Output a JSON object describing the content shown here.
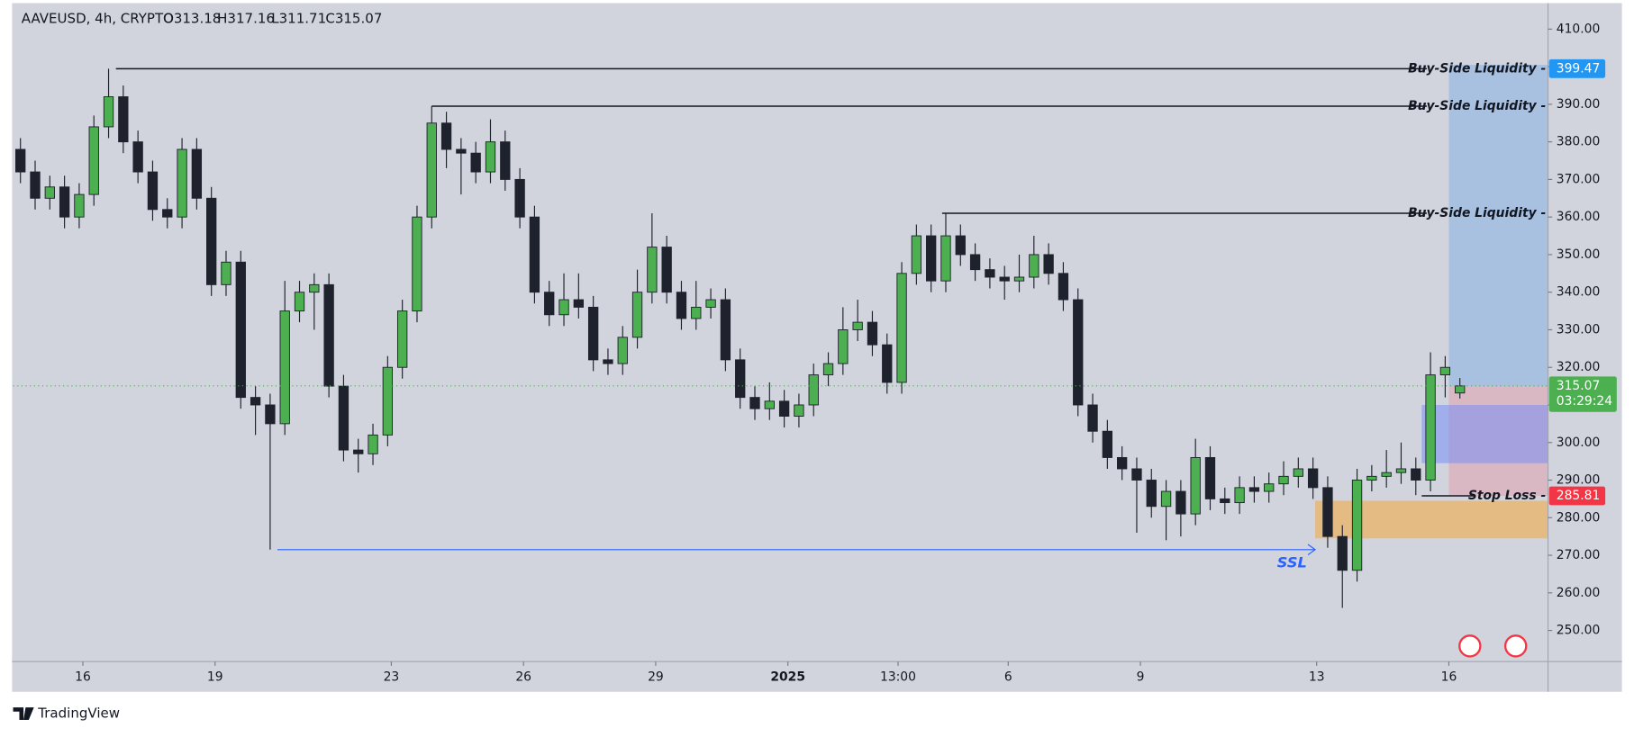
{
  "chart_data": {
    "type": "candlestick",
    "title": "AAVEUSD, 4h, CRYPTO",
    "ohlc_text": [
      "O313.18",
      "H317.16",
      "L311.71",
      "C315.07"
    ],
    "countdown": "03:29:24",
    "brand": "TradingView",
    "up_color": "#4caf50",
    "down_color": "#1e222d",
    "last_price_color": "#4caf50",
    "x": [
      1,
      3,
      5,
      7,
      9,
      11,
      13,
      15,
      17,
      19,
      21,
      23,
      25,
      27,
      29,
      31,
      33,
      35,
      37,
      39,
      41,
      43,
      45,
      47,
      49,
      51,
      53,
      55,
      57,
      59,
      61,
      63,
      65,
      67,
      69,
      71,
      73,
      75,
      77,
      79,
      81,
      83,
      85,
      87,
      89,
      91,
      93,
      95,
      97,
      99,
      101,
      103,
      105,
      107,
      109,
      111,
      113,
      115,
      117,
      119,
      121,
      123,
      125,
      127,
      129,
      131,
      133,
      135,
      137,
      139,
      141,
      143,
      145,
      147,
      149,
      151,
      153,
      155,
      157,
      159,
      161,
      163,
      165,
      167,
      169,
      171,
      173,
      175,
      177,
      179,
      181,
      183,
      185,
      187,
      189,
      191,
      193,
      195,
      197
    ],
    "open": [
      378,
      372,
      365,
      368,
      360,
      366,
      384,
      392,
      380,
      372,
      362,
      360,
      378,
      365,
      342,
      348,
      312,
      310,
      305,
      335,
      340,
      342,
      315,
      298,
      297,
      302,
      320,
      335,
      360,
      385,
      378,
      377,
      372,
      380,
      370,
      360,
      340,
      334,
      338,
      336,
      322,
      321,
      328,
      340,
      352,
      340,
      333,
      336,
      338,
      322,
      312,
      309,
      311,
      307,
      310,
      318,
      321,
      330,
      332,
      326,
      316,
      345,
      355,
      343,
      355,
      350,
      346,
      344,
      343,
      344,
      350,
      345,
      338,
      310,
      303,
      296,
      293,
      290,
      283,
      287,
      281,
      296,
      285,
      284,
      288,
      287,
      289,
      291,
      293,
      288,
      275,
      266,
      290,
      291,
      292,
      293,
      290,
      318,
      313.18
    ],
    "high": [
      381,
      375,
      371,
      371,
      369,
      387,
      399.47,
      395,
      383,
      375,
      365,
      381,
      381,
      368,
      351,
      351,
      315,
      313,
      343,
      343,
      345,
      345,
      318,
      301,
      305,
      323,
      338,
      363,
      389.5,
      388,
      381,
      380,
      386,
      383,
      373,
      363,
      343,
      345,
      345,
      339,
      325,
      331,
      346,
      361,
      355,
      343,
      343,
      341,
      341,
      325,
      315,
      316,
      314,
      313,
      321,
      324,
      336,
      338,
      335,
      329,
      348,
      358,
      358,
      361,
      358,
      353,
      349,
      347,
      350,
      355,
      353,
      348,
      341,
      313,
      306,
      299,
      296,
      293,
      290,
      290,
      301,
      299,
      288,
      291,
      291,
      292,
      295,
      296,
      296,
      291,
      278,
      293,
      294,
      298,
      300,
      296,
      324,
      323,
      317.16
    ],
    "low": [
      369,
      362,
      362,
      357,
      357,
      363,
      381,
      377,
      369,
      359,
      357,
      357,
      362,
      339,
      339,
      309,
      302,
      271.5,
      302,
      332,
      330,
      312,
      295,
      292,
      294,
      299,
      317,
      332,
      357,
      373,
      366,
      369,
      369,
      367,
      357,
      337,
      331,
      331,
      333,
      319,
      318,
      318,
      325,
      337,
      337,
      330,
      330,
      333,
      319,
      309,
      306,
      306,
      304,
      304,
      307,
      315,
      318,
      327,
      323,
      313,
      313,
      342,
      340,
      340,
      347,
      343,
      341,
      338,
      340,
      341,
      342,
      335,
      307,
      300,
      293,
      290,
      276,
      280,
      274,
      275,
      278,
      282,
      281,
      281,
      284,
      284,
      286,
      288,
      285,
      272,
      256,
      263,
      287,
      288,
      289,
      286,
      287,
      312,
      311.71
    ],
    "close": [
      372,
      365,
      368,
      360,
      366,
      384,
      392,
      380,
      372,
      362,
      360,
      378,
      365,
      342,
      348,
      312,
      310,
      305,
      335,
      340,
      342,
      315,
      298,
      297,
      302,
      320,
      335,
      360,
      385,
      378,
      377,
      372,
      380,
      370,
      360,
      340,
      334,
      338,
      336,
      322,
      321,
      328,
      340,
      352,
      340,
      333,
      336,
      338,
      322,
      312,
      309,
      311,
      307,
      310,
      318,
      321,
      330,
      332,
      326,
      316,
      345,
      355,
      343,
      355,
      350,
      346,
      344,
      343,
      344,
      350,
      345,
      338,
      310,
      303,
      296,
      293,
      290,
      283,
      287,
      281,
      296,
      285,
      284,
      288,
      287,
      289,
      291,
      293,
      288,
      275,
      266,
      290,
      291,
      292,
      293,
      290,
      318,
      320,
      315.07
    ],
    "xlim": [
      0,
      209
    ],
    "ylim": [
      241.7,
      416.64
    ],
    "xticks": [
      {
        "value": 9.5,
        "label": "16"
      },
      {
        "value": 27.5,
        "label": "19"
      },
      {
        "value": 51.5,
        "label": "23"
      },
      {
        "value": 69.5,
        "label": "26"
      },
      {
        "value": 87.5,
        "label": "29"
      },
      {
        "value": 105.5,
        "label": "2025"
      },
      {
        "value": 120.5,
        "label": "13:00"
      },
      {
        "value": 135.5,
        "label": "6"
      },
      {
        "value": 153.5,
        "label": "9"
      },
      {
        "value": 177.5,
        "label": "13"
      },
      {
        "value": 195.5,
        "label": "16"
      }
    ],
    "yticks": [
      {
        "value": 250,
        "label": "250.00"
      },
      {
        "value": 260,
        "label": "260.00"
      },
      {
        "value": 270,
        "label": "270.00"
      },
      {
        "value": 280,
        "label": "280.00"
      },
      {
        "value": 290,
        "label": "290.00"
      },
      {
        "value": 300,
        "label": "300.00"
      },
      {
        "value": 310,
        "label": "310.00"
      },
      {
        "value": 320,
        "label": "320.00"
      },
      {
        "value": 330,
        "label": "330.00"
      },
      {
        "value": 340,
        "label": "340.00"
      },
      {
        "value": 350,
        "label": "350.00"
      },
      {
        "value": 360,
        "label": "360.00"
      },
      {
        "value": 370,
        "label": "370.00"
      },
      {
        "value": 380,
        "label": "380.00"
      },
      {
        "value": 390,
        "label": "390.00"
      },
      {
        "value": 400,
        "label": "400.00"
      },
      {
        "value": 410,
        "label": "410.00"
      }
    ],
    "zones": [
      {
        "low": 315.07,
        "high": 400.5,
        "x_start": 195.5,
        "x_end": 209,
        "color": "rgba(120,170,230,0.45)"
      },
      {
        "low": 285.81,
        "high": 315.07,
        "x_start": 195.5,
        "x_end": 209,
        "color": "rgba(240,120,140,0.30)"
      },
      {
        "low": 294.5,
        "high": 310,
        "x_start": 191.8,
        "x_end": 209,
        "color": "rgba(100,130,255,0.45)"
      },
      {
        "low": 274.5,
        "high": 284.5,
        "x_start": 177.3,
        "x_end": 209,
        "color": "rgba(245,165,60,0.55)"
      }
    ],
    "levels": [
      {
        "label": "Buy-Side Liquidity -",
        "value": 399.47,
        "x_start": 14,
        "x_end": 192.5,
        "color": "#131722",
        "tag_color": "#2196f3"
      },
      {
        "label": "Buy-Side Liquidity -",
        "value": 389.5,
        "x_start": 57,
        "x_end": 192.5,
        "color": "#131722"
      },
      {
        "label": "Buy-Side Liquidity -",
        "value": 361,
        "x_start": 126.5,
        "x_end": 192.5,
        "color": "#131722"
      },
      {
        "label": "Stop Loss -",
        "value": 285.81,
        "x_start": 191.8,
        "x_end": 199,
        "color": "#131722",
        "tag_color": "#f23645"
      }
    ],
    "ssl": {
      "label": "SSL",
      "value": 271.5,
      "x_start": 36,
      "x_end": 177.3,
      "color": "#2962ff"
    }
  }
}
